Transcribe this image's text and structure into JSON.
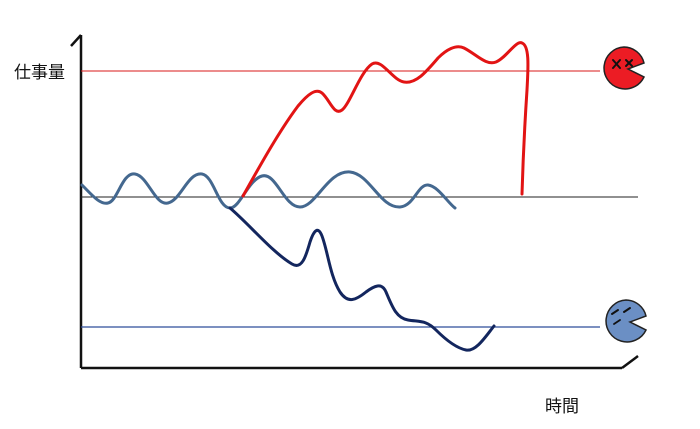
{
  "labels": {
    "y_axis": "仕事量",
    "x_axis": "時間"
  },
  "colors": {
    "axis": "#111111",
    "overload_line": "#d81818",
    "overload_curve": "#e21414",
    "baseline": "#222222",
    "underload_line": "#2f4e9a",
    "oscillation": "#44688f",
    "decline_curve": "#13265e",
    "angry_face": "#ec1c24",
    "sad_face": "#6b8fc4"
  },
  "icons": {
    "top_right": "angry-face-icon",
    "bottom_right": "sad-face-icon"
  }
}
